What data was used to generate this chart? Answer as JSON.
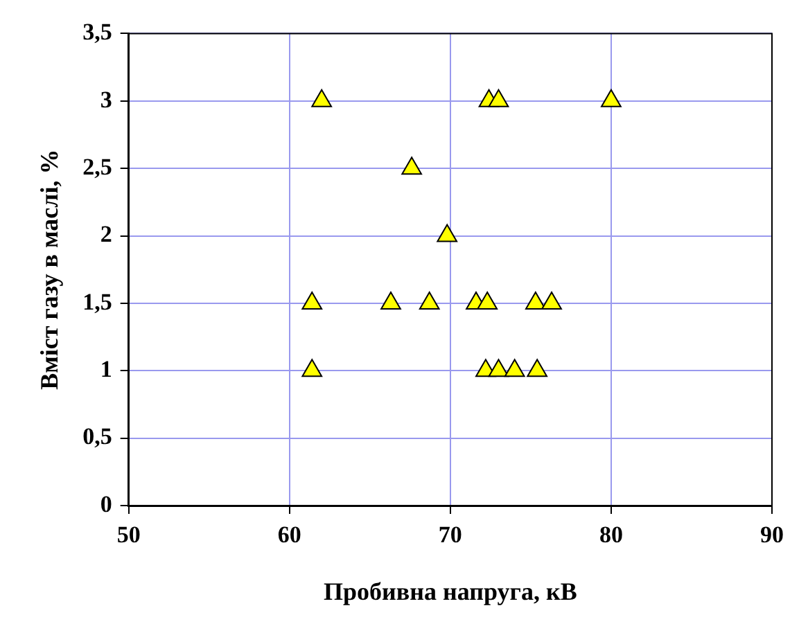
{
  "chart_data": {
    "type": "scatter",
    "xlabel": "Пробивна напруга, кВ",
    "ylabel": "Вміст газу в маслі, %",
    "x": [
      62,
      72.4,
      73,
      80,
      67.6,
      69.8,
      61.4,
      66.3,
      68.7,
      71.6,
      72.3,
      75.3,
      76.3,
      61.4,
      72.2,
      73,
      74,
      75.4
    ],
    "values": [
      3,
      3,
      3,
      3,
      2.5,
      2,
      1.5,
      1.5,
      1.5,
      1.5,
      1.5,
      1.5,
      1.5,
      1,
      1,
      1,
      1,
      1
    ],
    "color": "#ffff00",
    "marker": "triangle",
    "grid": true,
    "xlim": [
      50,
      90
    ],
    "xticks": [
      50,
      60,
      70,
      80,
      90
    ],
    "ylim": [
      0,
      3.5
    ],
    "yticks": [
      0,
      {
        "value": 0.5,
        "label": "0,5"
      },
      1,
      {
        "value": 1.5,
        "label": "1,5"
      },
      2,
      {
        "value": 2.5,
        "label": "2,5"
      },
      3,
      {
        "value": 3.5,
        "label": "3,5"
      }
    ]
  }
}
